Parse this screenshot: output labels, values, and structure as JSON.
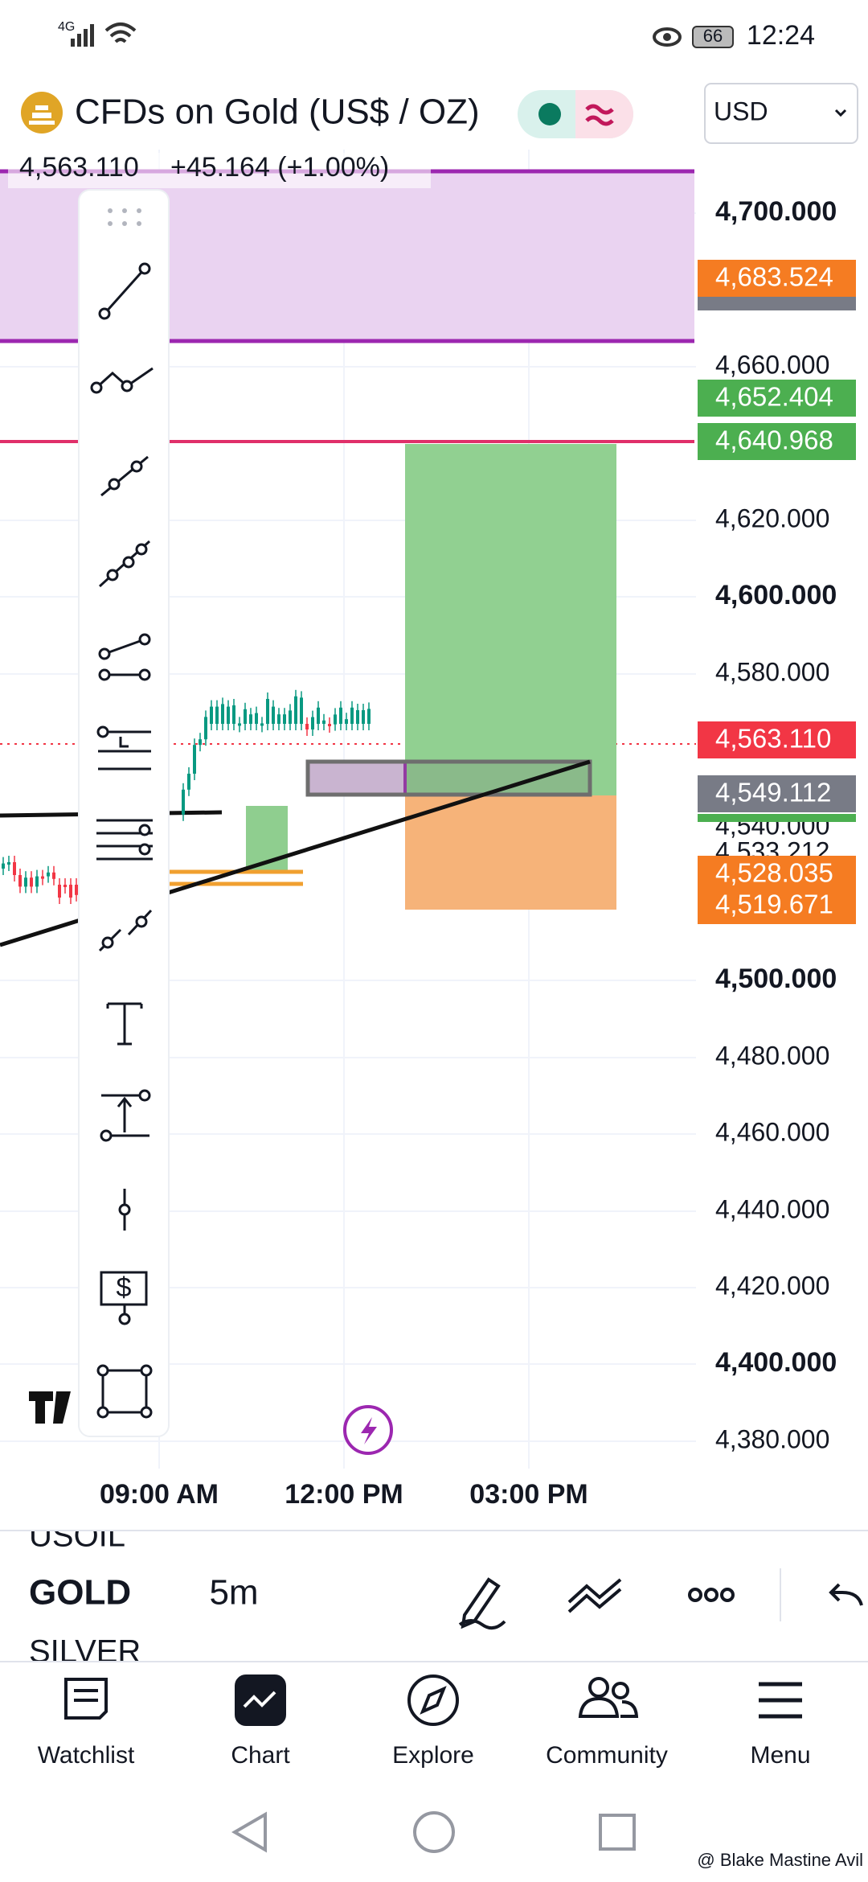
{
  "status_bar": {
    "network": "4G",
    "battery": "66",
    "time": "12:24"
  },
  "header": {
    "title": "CFDs on Gold (US$ / OZ)",
    "currency": "USD"
  },
  "quote": {
    "price": "4,563.110",
    "change": "+45.164 (+1.00%)"
  },
  "price_axis": {
    "labels": [
      "4,700.000",
      "4,660.000",
      "4,620.000",
      "4,600.000",
      "4,580.000",
      "4,540.000",
      "4,533.212",
      "4,500.000",
      "4,480.000",
      "4,460.000",
      "4,440.000",
      "4,420.000",
      "4,400.000",
      "4,380.000"
    ]
  },
  "price_tags": [
    {
      "label": "4,683.524",
      "color": "#f57c22"
    },
    {
      "label": "4,652.404",
      "color": "#4caf50"
    },
    {
      "label": "4,640.968",
      "color": "#4caf50"
    },
    {
      "label": "4,563.110",
      "color": "#f23645"
    },
    {
      "label": "4,549.112",
      "color": "#787b86"
    },
    {
      "label": "4,528.035",
      "color": "#f57c22"
    },
    {
      "label": "4,519.671",
      "color": "#f57c22"
    }
  ],
  "time_axis": {
    "labels": [
      "09:00 AM",
      "12:00 PM",
      "03:00 PM"
    ]
  },
  "symbols": [
    "USOIL",
    "GOLD",
    "SILVER"
  ],
  "timeframe": "5m",
  "bottom_nav": [
    "Watchlist",
    "Chart",
    "Explore",
    "Community",
    "Menu"
  ],
  "watermark": "@ Blake Mastine Avil"
}
